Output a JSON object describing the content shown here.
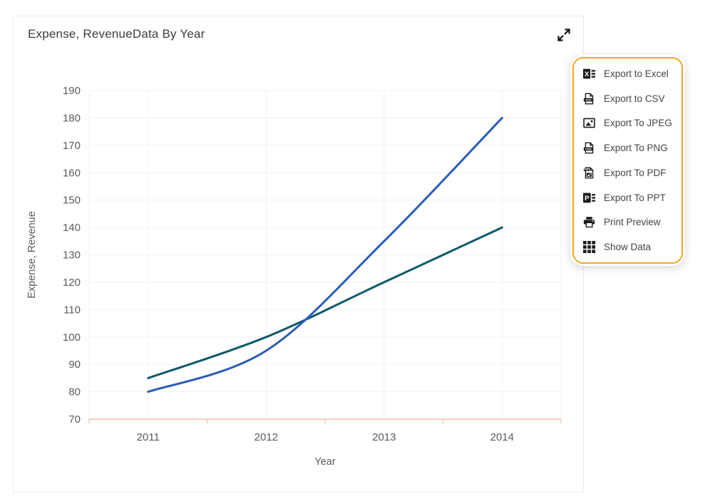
{
  "card": {
    "title": "Expense, RevenueData By Year"
  },
  "toolbar": {
    "expand_icon": "expand-diagonal-arrows"
  },
  "menu": {
    "border_color": "#EFA720",
    "items": [
      {
        "label": "Export to Excel",
        "icon": "excel"
      },
      {
        "label": "Export to CSV",
        "icon": "csv"
      },
      {
        "label": "Export To JPEG",
        "icon": "jpeg"
      },
      {
        "label": "Export To PNG",
        "icon": "png"
      },
      {
        "label": "Export To PDF",
        "icon": "pdf"
      },
      {
        "label": "Export To PPT",
        "icon": "ppt"
      },
      {
        "label": "Print Preview",
        "icon": "printer"
      },
      {
        "label": "Show Data",
        "icon": "grid"
      }
    ]
  },
  "chart_data": {
    "type": "line",
    "title": "Expense, RevenueData By Year",
    "x": [
      "2011",
      "2012",
      "2013",
      "2014"
    ],
    "xlabel": "Year",
    "ylabel": "Expense, Revenue",
    "ylim": [
      70,
      190
    ],
    "ytick_step": 10,
    "grid": true,
    "legend": "none",
    "smooth": true,
    "series": [
      {
        "name": "Expense",
        "color": "#2A5DB8",
        "values": [
          80,
          95,
          135,
          180
        ]
      },
      {
        "name": "Revenue",
        "color": "#0F5A6A",
        "values": [
          85,
          100,
          120,
          140
        ]
      }
    ],
    "colors": {
      "axis_line": "#F3C0AE",
      "gridline": "#F1F1F1",
      "tick_label": "#5B5B5B",
      "axis_title": "#5B5B5B"
    }
  }
}
